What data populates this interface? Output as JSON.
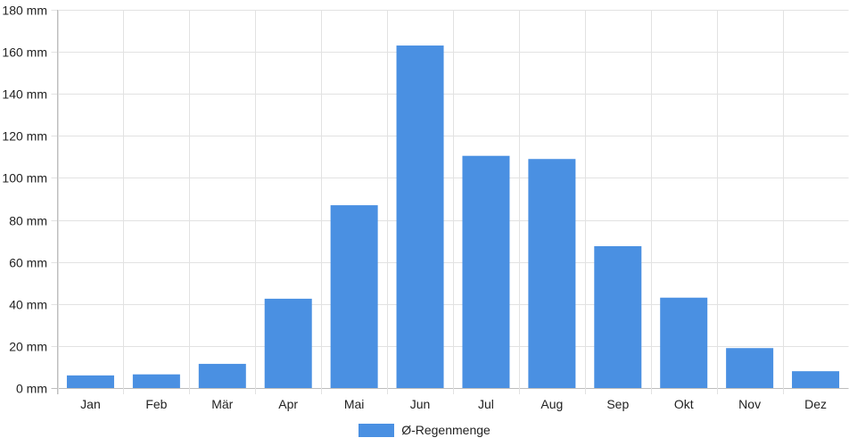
{
  "chart_data": {
    "type": "bar",
    "categories": [
      "Jan",
      "Feb",
      "Mär",
      "Apr",
      "Mai",
      "Jun",
      "Jul",
      "Aug",
      "Sep",
      "Okt",
      "Nov",
      "Dez"
    ],
    "series": [
      {
        "name": "Ø-Regenmenge",
        "values": [
          6,
          6.5,
          11.5,
          42.5,
          87,
          163,
          110.5,
          109,
          67.5,
          43,
          19,
          8
        ],
        "color": "#4a90e2"
      }
    ],
    "y_ticks": [
      "0 mm",
      "20 mm",
      "40 mm",
      "60 mm",
      "80 mm",
      "100 mm",
      "120 mm",
      "140 mm",
      "160 mm",
      "180 mm"
    ],
    "ylim": [
      0,
      180
    ],
    "y_step": 20,
    "grid": true,
    "legend_position": "bottom",
    "title": "",
    "xlabel": "",
    "ylabel": ""
  }
}
